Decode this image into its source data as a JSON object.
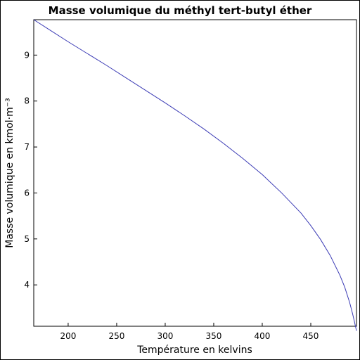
{
  "chart_data": {
    "type": "line",
    "title": "Masse volumique du méthyl tert-butyl éther",
    "xlabel": "Température en kelvins",
    "ylabel": "Masse volumique en kmol·m⁻³",
    "xlim": [
      164.55,
      497.1
    ],
    "ylim": [
      3.1,
      9.77
    ],
    "xticks": [
      200,
      250,
      300,
      350,
      400,
      450
    ],
    "yticks": [
      4,
      5,
      6,
      7,
      8,
      9
    ],
    "grid": false,
    "line_color": "#3b3bb5",
    "series": [
      {
        "x": [
          164.55,
          180,
          200,
          220,
          240,
          260,
          280,
          300,
          320,
          340,
          360,
          380,
          400,
          420,
          440,
          450,
          460,
          470,
          480,
          485,
          490,
          493,
          495,
          496,
          496.6,
          497.1
        ],
        "values": [
          9.77,
          9.56,
          9.29,
          9.03,
          8.77,
          8.5,
          8.23,
          7.96,
          7.68,
          7.39,
          7.08,
          6.75,
          6.4,
          6.0,
          5.56,
          5.29,
          4.99,
          4.64,
          4.21,
          3.95,
          3.62,
          3.38,
          3.2,
          3.1,
          3.05,
          3.0
        ]
      }
    ]
  }
}
